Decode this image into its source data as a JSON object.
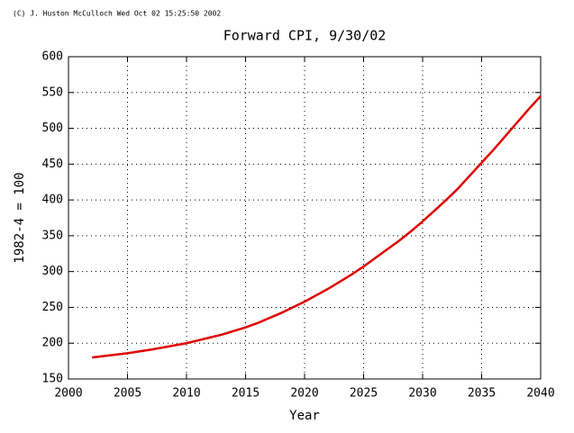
{
  "chart_data": {
    "type": "line",
    "credit": "(C) J. Huston McCulloch Wed Oct 02 15:25:50 2002",
    "title": "Forward CPI, 9/30/02",
    "x_label": "Year",
    "y_label": "1982-4 = 100",
    "x": [
      2002,
      2003,
      2004,
      2005,
      2006,
      2007,
      2008,
      2009,
      2010,
      2011,
      2012,
      2013,
      2014,
      2015,
      2016,
      2017,
      2018,
      2019,
      2020,
      2021,
      2022,
      2023,
      2024,
      2025,
      2026,
      2027,
      2028,
      2029,
      2030,
      2031,
      2032,
      2033,
      2034,
      2035,
      2036,
      2037,
      2038,
      2039,
      2040
    ],
    "series": [
      {
        "name": "Forward CPI",
        "color": "#e00000",
        "values": [
          180,
          182,
          184,
          186,
          188.5,
          191,
          194,
          197,
          200,
          204,
          208,
          212,
          217,
          222,
          228,
          235,
          242,
          250,
          258,
          267,
          276,
          286,
          296,
          307,
          319,
          331,
          343,
          356,
          370,
          385,
          400,
          416,
          434,
          452,
          470,
          489,
          508,
          527,
          545
        ]
      }
    ],
    "xlim": [
      2000,
      2040
    ],
    "xticks": [
      2000,
      2005,
      2010,
      2015,
      2020,
      2025,
      2030,
      2035,
      2040
    ],
    "ylim": [
      150,
      600
    ],
    "yticks": [
      150,
      200,
      250,
      300,
      350,
      400,
      450,
      500,
      550,
      600
    ],
    "grid": true
  }
}
